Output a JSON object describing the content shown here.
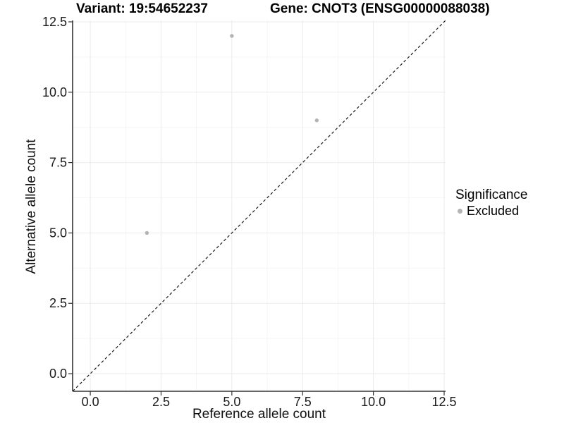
{
  "chart_data": {
    "type": "scatter",
    "title_left": "Variant: 19:54652237",
    "title_right": "Gene: CNOT3 (ENSG00000088038)",
    "xlabel": "Reference allele count",
    "ylabel": "Alternative allele count",
    "xlim": [
      -0.625,
      12.55
    ],
    "ylim": [
      -0.625,
      12.55
    ],
    "tick_values": [
      0,
      2.5,
      5,
      7.5,
      10,
      12.5
    ],
    "tick_labels": [
      "0.0",
      "2.5",
      "5.0",
      "7.5",
      "10.0",
      "12.5"
    ],
    "minor_tick_values": [
      1.25,
      3.75,
      6.25,
      8.75,
      11.25
    ],
    "grid": {
      "major_color": "#ebebeb",
      "minor_color": "#f5f5f5",
      "background": "#ffffff"
    },
    "axis_color": "#333333",
    "identity_line": {
      "slope": 1,
      "intercept": 0,
      "style": "dashed",
      "color": "#1a1a1a"
    },
    "series": [
      {
        "name": "Excluded",
        "color": "#b3b3b3",
        "points": [
          [
            2,
            5
          ],
          [
            5,
            12
          ],
          [
            8,
            9
          ]
        ]
      }
    ],
    "legend": {
      "title": "Significance",
      "position": "right"
    }
  }
}
